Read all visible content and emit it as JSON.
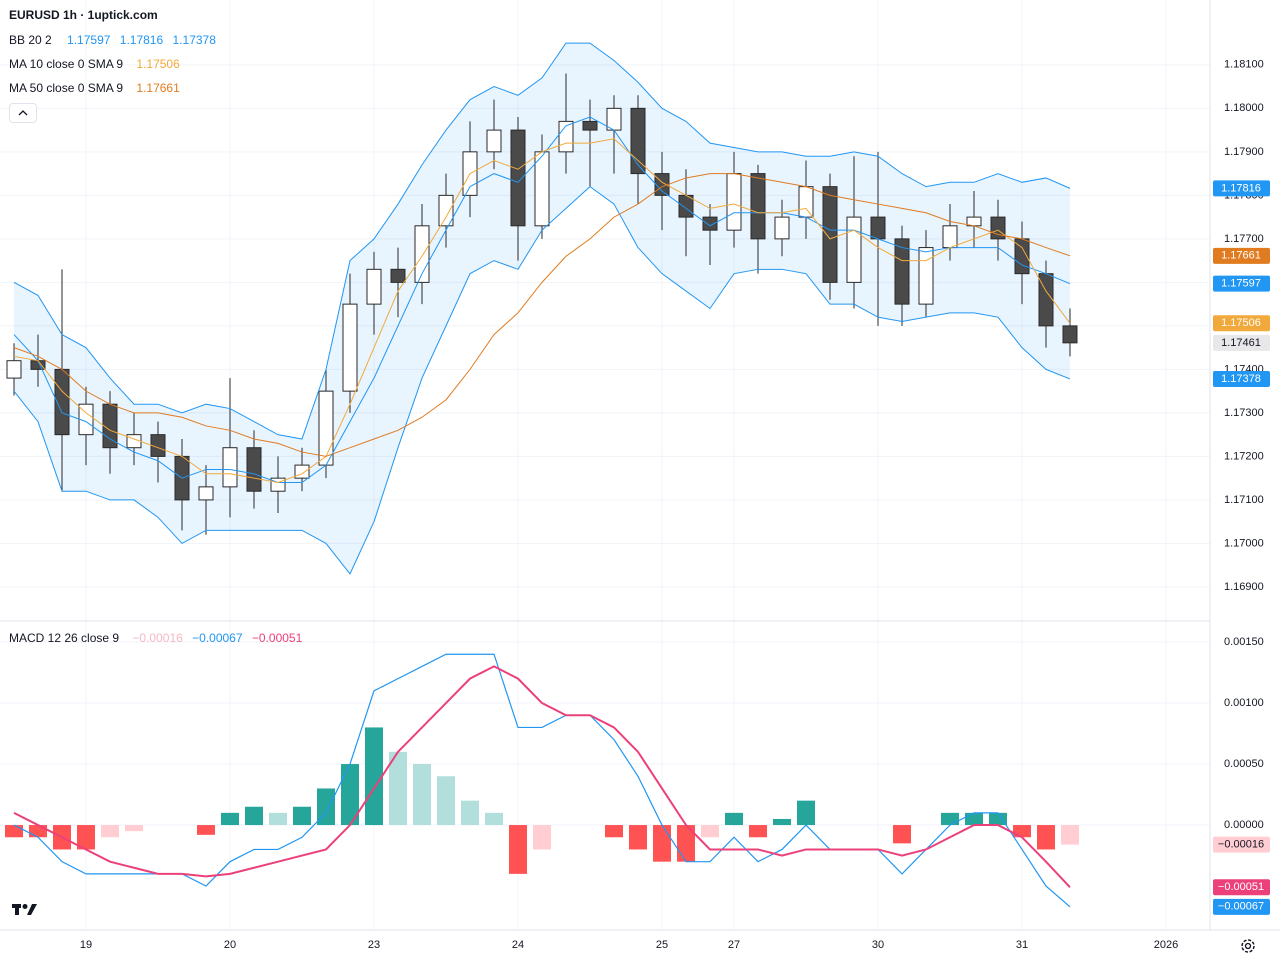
{
  "header": {
    "title": "EURUSD 1h · 1uptick.com"
  },
  "chart_data": [
    {
      "type": "candlestick",
      "categories": [
        null,
        null,
        null,
        "19",
        null,
        null,
        null,
        null,
        null,
        "20",
        null,
        null,
        null,
        null,
        null,
        "23",
        null,
        null,
        null,
        null,
        null,
        "24",
        null,
        null,
        null,
        null,
        null,
        "25",
        null,
        null,
        "27",
        null,
        null,
        null,
        null,
        null,
        "30",
        null,
        null,
        null,
        null,
        null,
        "31",
        null,
        null,
        null,
        null,
        null,
        "2026"
      ],
      "open": [
        1.1738,
        1.1742,
        1.174,
        1.1725,
        1.1732,
        1.1722,
        1.1725,
        1.172,
        1.171,
        1.1713,
        1.1722,
        1.1712,
        1.1715,
        1.1718,
        1.1735,
        1.1755,
        1.1763,
        1.176,
        1.1773,
        1.178,
        1.179,
        1.1795,
        1.1773,
        1.179,
        1.1797,
        1.1795,
        1.18,
        1.1785,
        1.178,
        1.1775,
        1.1772,
        1.1785,
        1.177,
        1.1775,
        1.1782,
        1.176,
        1.1775,
        1.177,
        1.1755,
        1.1768,
        1.1773,
        1.1775,
        1.177,
        1.1762,
        1.175,
        null,
        null,
        null,
        null
      ],
      "high": [
        1.1746,
        1.1748,
        1.1763,
        1.1736,
        1.1735,
        1.173,
        1.1728,
        1.1724,
        1.1718,
        1.1738,
        1.1726,
        1.172,
        1.1722,
        1.174,
        1.1762,
        1.1767,
        1.1768,
        1.1778,
        1.1785,
        1.1797,
        1.1802,
        1.1798,
        1.1794,
        1.1808,
        1.1802,
        1.1803,
        1.1803,
        1.179,
        1.1786,
        1.1778,
        1.179,
        1.1787,
        1.1779,
        1.1788,
        1.1785,
        1.1789,
        1.179,
        1.1773,
        1.1772,
        1.1778,
        1.1781,
        1.1779,
        1.1774,
        1.1765,
        1.1754,
        null,
        null,
        null,
        null
      ],
      "low": [
        1.1734,
        1.1736,
        1.1712,
        1.1718,
        1.1716,
        1.1718,
        1.1714,
        1.1703,
        1.1702,
        1.1706,
        1.1708,
        1.1707,
        1.1712,
        1.1715,
        1.173,
        1.1748,
        1.1752,
        1.1755,
        1.1768,
        1.1775,
        1.1786,
        1.1765,
        1.177,
        1.1785,
        1.1782,
        1.1785,
        1.1778,
        1.1772,
        1.1766,
        1.1764,
        1.1768,
        1.1762,
        1.1766,
        1.177,
        1.1756,
        1.1754,
        1.175,
        1.175,
        1.1752,
        1.1765,
        1.1768,
        1.1765,
        1.1755,
        1.1745,
        1.1743,
        null,
        null,
        null,
        null
      ],
      "close": [
        1.1742,
        1.174,
        1.1725,
        1.1732,
        1.1722,
        1.1725,
        1.172,
        1.171,
        1.1713,
        1.1722,
        1.1712,
        1.1715,
        1.1718,
        1.1735,
        1.1755,
        1.1763,
        1.176,
        1.1773,
        1.178,
        1.179,
        1.1795,
        1.1773,
        1.179,
        1.1797,
        1.1795,
        1.18,
        1.1785,
        1.178,
        1.1775,
        1.1772,
        1.1785,
        1.177,
        1.1775,
        1.1782,
        1.176,
        1.1775,
        1.177,
        1.1755,
        1.1768,
        1.1773,
        1.1775,
        1.177,
        1.1762,
        1.175,
        1.17461,
        null,
        null,
        null,
        null
      ],
      "up_color": "#ffffff",
      "down_color": "#4a4a4a",
      "wick_color": "#2a2a2a",
      "bollinger": {
        "name": "BB 20 2",
        "color": "#2196f3",
        "fill": "rgba(33,150,243,0.1)",
        "basis": [
          1.1748,
          1.1742,
          1.173,
          1.1728,
          1.1724,
          1.1721,
          1.1719,
          1.1715,
          1.1717,
          1.1717,
          1.1716,
          1.1714,
          1.1714,
          1.1718,
          1.1728,
          1.1738,
          1.175,
          1.1762,
          1.1772,
          1.1782,
          1.1785,
          1.1783,
          1.1789,
          1.1796,
          1.1798,
          1.1795,
          1.1787,
          1.1781,
          1.1777,
          1.1773,
          1.1776,
          1.1776,
          1.1776,
          1.1775,
          1.1772,
          1.1772,
          1.177,
          1.1768,
          1.1767,
          1.1768,
          1.1768,
          1.1768,
          1.1764,
          1.1762,
          1.17597,
          null,
          null,
          null,
          null
        ],
        "upper": [
          1.176,
          1.1757,
          1.1748,
          1.1745,
          1.1738,
          1.1732,
          1.1732,
          1.173,
          1.1732,
          1.1731,
          1.1728,
          1.1725,
          1.1724,
          1.174,
          1.1765,
          1.177,
          1.1778,
          1.1787,
          1.1795,
          1.1802,
          1.1805,
          1.1803,
          1.1807,
          1.1815,
          1.1815,
          1.1811,
          1.1806,
          1.18,
          1.1797,
          1.1792,
          1.1791,
          1.179,
          1.179,
          1.1789,
          1.1789,
          1.179,
          1.1789,
          1.1785,
          1.1782,
          1.1783,
          1.1783,
          1.1785,
          1.1783,
          1.1784,
          1.17816,
          null,
          null,
          null,
          null
        ],
        "lower": [
          1.1735,
          1.1728,
          1.1712,
          1.1712,
          1.171,
          1.171,
          1.1706,
          1.17,
          1.1703,
          1.1703,
          1.1703,
          1.1703,
          1.1703,
          1.17,
          1.1693,
          1.1705,
          1.1722,
          1.1738,
          1.175,
          1.1762,
          1.1765,
          1.1763,
          1.1772,
          1.1777,
          1.1782,
          1.1778,
          1.1768,
          1.1762,
          1.1758,
          1.1754,
          1.1762,
          1.1763,
          1.1763,
          1.1762,
          1.1755,
          1.1755,
          1.1752,
          1.1751,
          1.1752,
          1.1753,
          1.1753,
          1.1752,
          1.1745,
          1.174,
          1.17378,
          null,
          null,
          null,
          null
        ]
      },
      "moving_averages": [
        {
          "name": "MA 10 close 0 SMA 9",
          "color": "#f2a93b",
          "values": [
            1.1743,
            1.1742,
            1.1735,
            1.173,
            1.1726,
            1.1724,
            1.1722,
            1.172,
            1.1716,
            1.1716,
            1.1715,
            1.1714,
            1.1716,
            1.172,
            1.1732,
            1.1745,
            1.1758,
            1.1766,
            1.1775,
            1.1785,
            1.1788,
            1.1786,
            1.179,
            1.1792,
            1.1792,
            1.1793,
            1.1788,
            1.1783,
            1.178,
            1.1777,
            1.1778,
            1.1776,
            1.1776,
            1.1777,
            1.177,
            1.1772,
            1.1768,
            1.1765,
            1.1765,
            1.1768,
            1.177,
            1.1772,
            1.1768,
            1.1758,
            1.17506,
            null,
            null,
            null,
            null
          ]
        },
        {
          "name": "MA 50 close 0 SMA 9",
          "color": "#e07b1f",
          "values": [
            1.1745,
            1.1743,
            1.174,
            1.1735,
            1.1732,
            1.173,
            1.173,
            1.1729,
            1.1727,
            1.1726,
            1.1724,
            1.1723,
            1.1721,
            1.172,
            1.1722,
            1.1724,
            1.1726,
            1.1729,
            1.1733,
            1.174,
            1.1748,
            1.1753,
            1.176,
            1.1766,
            1.177,
            1.1775,
            1.1778,
            1.1782,
            1.1784,
            1.1785,
            1.1785,
            1.1784,
            1.1783,
            1.1782,
            1.178,
            1.1779,
            1.1778,
            1.1777,
            1.1776,
            1.1774,
            1.1773,
            1.1771,
            1.177,
            1.1768,
            1.17661,
            null,
            null,
            null,
            null
          ]
        }
      ],
      "last_price_color": "#e8e8ea",
      "ylim": [
        1.16824,
        1.18249
      ],
      "yticks": [
        {
          "value": 1.181,
          "label": "1.18100"
        },
        {
          "value": 1.18,
          "label": "1.18000"
        },
        {
          "value": 1.179,
          "label": "1.17900"
        },
        {
          "value": 1.178,
          "label": "1.17800"
        },
        {
          "value": 1.177,
          "label": "1.17700"
        },
        {
          "value": 1.176,
          "label": "1.17600"
        },
        {
          "value": 1.175,
          "label": "1.17500"
        },
        {
          "value": 1.174,
          "label": "1.17400"
        },
        {
          "value": 1.173,
          "label": "1.17300"
        },
        {
          "value": 1.172,
          "label": "1.17200"
        },
        {
          "value": 1.171,
          "label": "1.17100"
        },
        {
          "value": 1.17,
          "label": "1.17000"
        },
        {
          "value": 1.169,
          "label": "1.16900"
        }
      ],
      "grid": true
    },
    {
      "type": "macd",
      "name": "MACD 12 26 close 9",
      "histogram": {
        "last_label": "−0.00016",
        "colors": {
          "grow_above": "#26a69a",
          "fall_above": "#b2dfdb",
          "grow_below": "#ffcdd2",
          "fall_below": "#ff5252"
        },
        "values": [
          -0.0001,
          -0.0001,
          -0.0002,
          -0.0002,
          -0.0001,
          -5e-05,
          0,
          0,
          -8e-05,
          0.0001,
          0.00015,
          0.0001,
          0.00015,
          0.0003,
          0.0005,
          0.0008,
          0.0006,
          0.0005,
          0.0004,
          0.0002,
          0.0001,
          -0.0004,
          -0.0002,
          0,
          0,
          -0.0001,
          -0.0002,
          -0.0003,
          -0.0003,
          -0.0001,
          0.0001,
          -0.0001,
          5e-05,
          0.0002,
          0,
          0,
          0,
          -0.00015,
          0,
          0.0001,
          0.0001,
          0.0001,
          -0.0001,
          -0.0002,
          -0.00016,
          null,
          null,
          null,
          null
        ]
      },
      "macd": {
        "color": "#2196f3",
        "last_label": "−0.00067",
        "values": [
          0,
          -0.0001,
          -0.0003,
          -0.0004,
          -0.0004,
          -0.0004,
          -0.0004,
          -0.0004,
          -0.0005,
          -0.0003,
          -0.0002,
          -0.0002,
          -0.0001,
          0.0001,
          0.0005,
          0.0011,
          0.0012,
          0.0013,
          0.0014,
          0.0014,
          0.0014,
          0.0008,
          0.0008,
          0.0009,
          0.0009,
          0.0007,
          0.0004,
          0,
          -0.0003,
          -0.0003,
          -0.0001,
          -0.0003,
          -0.0002,
          0,
          -0.0002,
          -0.0002,
          -0.0002,
          -0.0004,
          -0.0002,
          0,
          0.0001,
          0.0001,
          -0.0002,
          -0.0005,
          -0.00067,
          null,
          null,
          null,
          null
        ]
      },
      "signal": {
        "color": "#ec407a",
        "last_label": "−0.00051",
        "values": [
          0.0001,
          0,
          -0.0001,
          -0.0002,
          -0.0003,
          -0.00035,
          -0.0004,
          -0.0004,
          -0.00042,
          -0.0004,
          -0.00035,
          -0.0003,
          -0.00025,
          -0.0002,
          0,
          0.0003,
          0.0006,
          0.0008,
          0.001,
          0.0012,
          0.0013,
          0.0012,
          0.001,
          0.0009,
          0.0009,
          0.0008,
          0.0006,
          0.0003,
          0,
          -0.0002,
          -0.0002,
          -0.0002,
          -0.00025,
          -0.0002,
          -0.0002,
          -0.0002,
          -0.0002,
          -0.00025,
          -0.0002,
          -0.0001,
          0,
          0,
          -0.0001,
          -0.0003,
          -0.00051,
          null,
          null,
          null,
          null
        ]
      },
      "ylim": [
        -0.00086,
        0.001664
      ],
      "yticks": [
        {
          "value": 0.0015,
          "label": "0.00150"
        },
        {
          "value": 0.001,
          "label": "0.00100"
        },
        {
          "value": 0.0005,
          "label": "0.00050"
        },
        {
          "value": 0,
          "label": "0.00000"
        }
      ],
      "grid": true
    }
  ]
}
